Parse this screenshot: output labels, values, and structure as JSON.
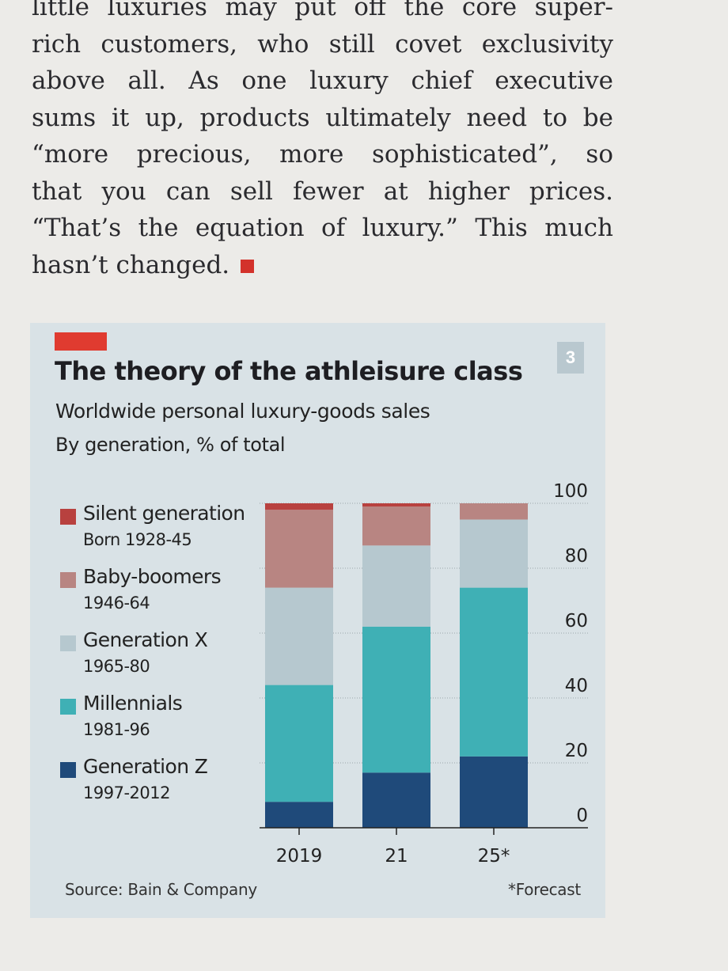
{
  "article": {
    "lines": [
      "little luxuries may put off the core super-",
      "rich customers, who still covet exclusivity",
      "above all. As one luxury chief executive",
      "sums it up, products ultimately need to be",
      "“more precious, more sophisticated”, so",
      "that you can sell fewer at higher prices.",
      "“That’s the equation of luxury.” This much",
      "hasn’t changed."
    ],
    "end_mark_icon": "red-square-icon"
  },
  "chart_badge": "3",
  "colors": {
    "accent_red": "#e03b30",
    "silent": "#b8413f",
    "boomers": "#b88582",
    "genx": "#b6c8cf",
    "millennials": "#3fb0b5",
    "genz": "#1f4a7a"
  },
  "chart_data": {
    "type": "bar",
    "stacked": true,
    "title": "The theory of the athleisure class",
    "subtitle": "Worldwide personal luxury-goods sales",
    "unit": "By generation, % of total",
    "categories": [
      "2019",
      "21",
      "25*"
    ],
    "series": [
      {
        "name": "Generation Z",
        "years": "1997-2012",
        "color": "#1f4a7a",
        "values": [
          8,
          17,
          22
        ]
      },
      {
        "name": "Millennials",
        "years": "1981-96",
        "color": "#3fb0b5",
        "values": [
          36,
          45,
          52
        ]
      },
      {
        "name": "Generation X",
        "years": "1965-80",
        "color": "#b6c8cf",
        "values": [
          30,
          25,
          21
        ]
      },
      {
        "name": "Baby-boomers",
        "years": "1946-64",
        "color": "#b88582",
        "values": [
          24,
          12,
          5
        ]
      },
      {
        "name": "Silent generation",
        "years": "Born 1928-45",
        "color": "#b8413f",
        "values": [
          2,
          1,
          0
        ]
      }
    ],
    "legend_order": [
      "Silent generation",
      "Baby-boomers",
      "Generation X",
      "Millennials",
      "Generation Z"
    ],
    "yticks": [
      0,
      20,
      40,
      60,
      80,
      100
    ],
    "ylim": [
      0,
      100
    ],
    "y_axis_side": "right",
    "grid": true,
    "source": "Source: Bain & Company",
    "footnote": "*Forecast"
  }
}
